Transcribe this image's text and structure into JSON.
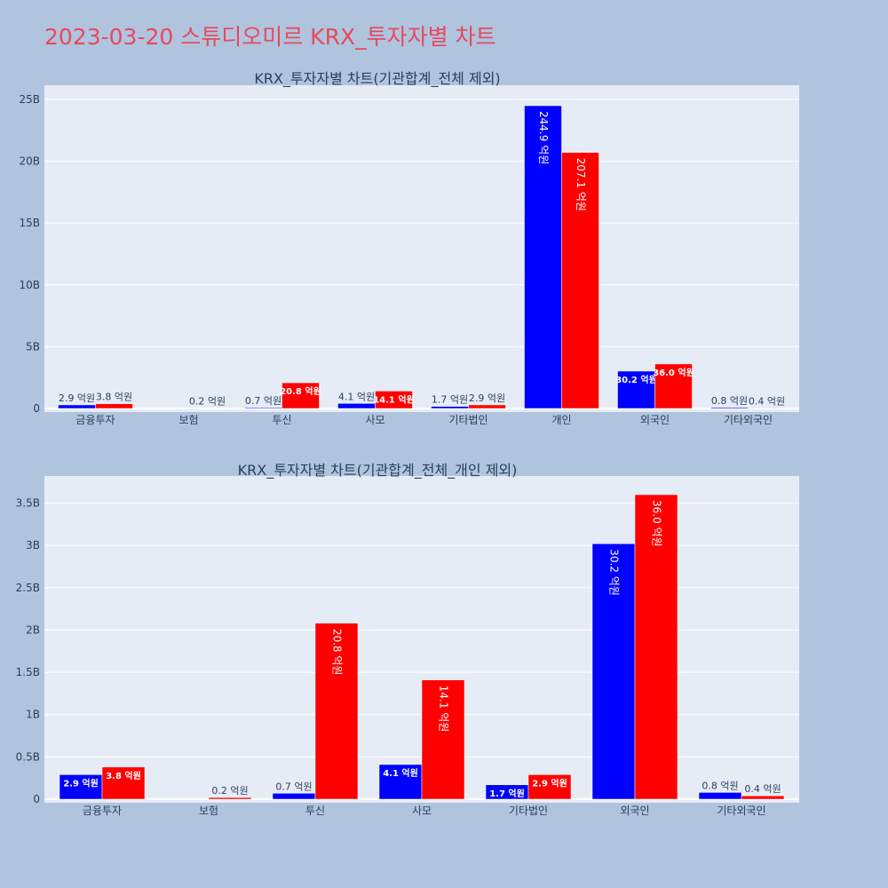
{
  "page_title": "2023-03-20 스튜디오미르 KRX_투자자별 차트",
  "colors": {
    "buy": "#0000ff",
    "sell": "#ff0000",
    "plot_bg": "#e5ecf6",
    "page_bg": "#b0c4de",
    "title": "#e8485f",
    "text": "#2a3f5f"
  },
  "chart_data": [
    {
      "type": "bar",
      "title": "KRX_투자자별 차트(기관합계_전체 제외)",
      "categories": [
        "금융투자",
        "보험",
        "투신",
        "사모",
        "기타법인",
        "개인",
        "외국인",
        "기타외국인"
      ],
      "ylim": [
        0,
        26000000000
      ],
      "yticks": [
        0,
        5000000000,
        10000000000,
        15000000000,
        20000000000,
        25000000000
      ],
      "ytick_labels": [
        "0",
        "5B",
        "10B",
        "15B",
        "20B",
        "25B"
      ],
      "grid": true,
      "series": [
        {
          "color": "#0000ff",
          "values": [
            290000000,
            0,
            70000000,
            410000000,
            170000000,
            24490000000,
            3020000000,
            80000000
          ],
          "labels": [
            "2.9 억원",
            "",
            "0.7 억원",
            "4.1 억원",
            "1.7 억원",
            "244.9 억원",
            "30.2 억원",
            "0.8 억원"
          ]
        },
        {
          "color": "#ff0000",
          "values": [
            380000000,
            20000000,
            2080000000,
            1410000000,
            290000000,
            20710000000,
            3600000000,
            40000000
          ],
          "labels": [
            "3.8 억원",
            "0.2 억원",
            "20.8 억원",
            "14.1 억원",
            "2.9 억원",
            "207.1 억원",
            "36.0 억원",
            "0.4 억원"
          ]
        }
      ]
    },
    {
      "type": "bar",
      "title": "KRX_투자자별 차트(기관합계_전체_개인 제외)",
      "categories": [
        "금융투자",
        "보험",
        "투신",
        "사모",
        "기타법인",
        "외국인",
        "기타외국인"
      ],
      "ylim": [
        0,
        3800000000
      ],
      "yticks": [
        0,
        500000000,
        1000000000,
        1500000000,
        2000000000,
        2500000000,
        3000000000,
        3500000000
      ],
      "ytick_labels": [
        "0",
        "0.5B",
        "1B",
        "1.5B",
        "2B",
        "2.5B",
        "3B",
        "3.5B"
      ],
      "grid": true,
      "series": [
        {
          "color": "#0000ff",
          "values": [
            290000000,
            0,
            70000000,
            410000000,
            170000000,
            3020000000,
            80000000
          ],
          "labels": [
            "2.9 억원",
            "",
            "0.7 억원",
            "4.1 억원",
            "1.7 억원",
            "30.2 억원",
            "0.8 억원"
          ]
        },
        {
          "color": "#ff0000",
          "values": [
            380000000,
            20000000,
            2080000000,
            1410000000,
            290000000,
            3600000000,
            40000000
          ],
          "labels": [
            "3.8 억원",
            "0.2 억원",
            "20.8 억원",
            "14.1 억원",
            "2.9 억원",
            "36.0 억원",
            "0.4 억원"
          ]
        }
      ]
    }
  ]
}
